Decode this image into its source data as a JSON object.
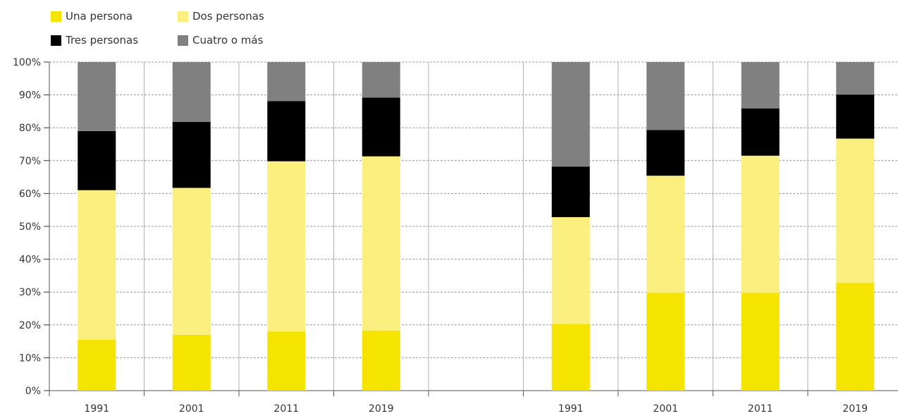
{
  "chart_data": {
    "type": "bar",
    "stacked": true,
    "normalized": true,
    "groups": [
      {
        "categories": [
          "1991",
          "2001",
          "2011",
          "2019"
        ]
      },
      {
        "categories": [
          "1991",
          "2001",
          "2011",
          "2019"
        ]
      }
    ],
    "categories": [
      "1991",
      "2001",
      "2011",
      "2019",
      "1991",
      "2001",
      "2011",
      "2019"
    ],
    "series": [
      {
        "name": "Una persona",
        "color": "#f5e300",
        "values": [
          15.5,
          17.0,
          18.0,
          18.3,
          20.3,
          29.8,
          29.8,
          32.8
        ]
      },
      {
        "name": "Dos personas",
        "color": "#fbf07f",
        "values": [
          45.5,
          44.7,
          51.8,
          53.0,
          32.5,
          35.6,
          41.7,
          43.9
        ]
      },
      {
        "name": "Tres personas",
        "color": "#000000",
        "values": [
          18.0,
          20.1,
          18.3,
          17.9,
          15.4,
          13.9,
          14.4,
          13.4
        ]
      },
      {
        "name": "Cuatro o más",
        "color": "#808080",
        "values": [
          21.0,
          18.2,
          11.9,
          10.8,
          31.8,
          20.7,
          14.1,
          9.9
        ]
      }
    ],
    "y_ticks": [
      "0%",
      "10%",
      "20%",
      "30%",
      "40%",
      "50%",
      "60%",
      "70%",
      "80%",
      "90%",
      "100%"
    ],
    "ylim": [
      0,
      100
    ],
    "grid": "horizontal dashed",
    "legend": "top-left"
  }
}
